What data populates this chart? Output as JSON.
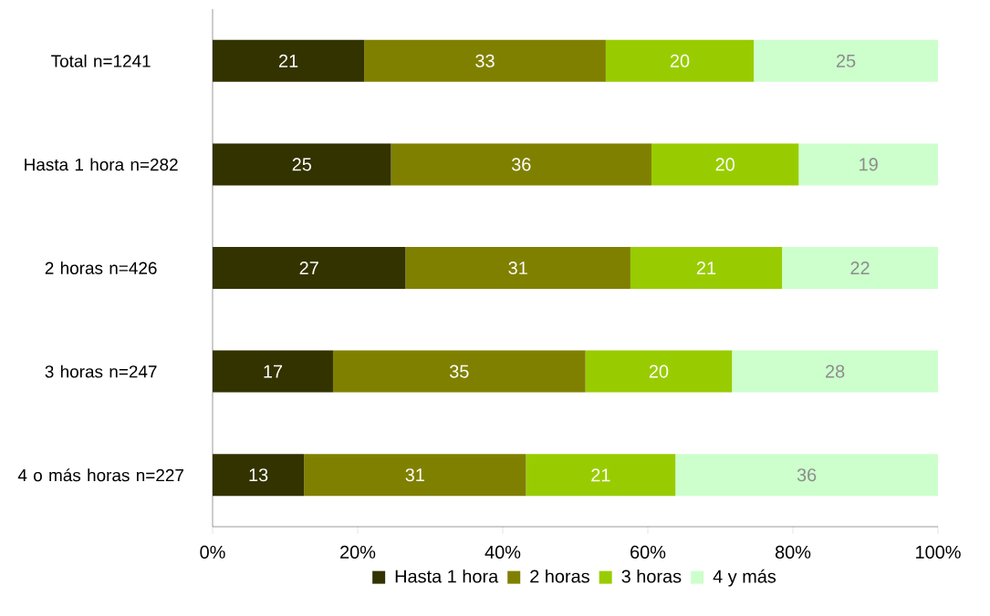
{
  "chart_data": {
    "type": "bar",
    "orientation": "horizontal",
    "stacked": true,
    "categories": [
      "Total n=1241",
      "Hasta 1 hora n=282",
      "2 horas n=426",
      "3 horas n=247",
      "4 o más horas n=227"
    ],
    "series": [
      {
        "name": "Hasta 1 hora",
        "color": "#333300",
        "values": [
          20.9,
          24.6,
          26.6,
          16.6,
          12.6
        ],
        "value_labels": [
          "21",
          "25",
          "27",
          "17",
          "13"
        ]
      },
      {
        "name": "2 horas",
        "color": "#808000",
        "values": [
          33.3,
          35.9,
          31.0,
          34.8,
          30.6
        ],
        "value_labels": [
          "33",
          "36",
          "31",
          "35",
          "31"
        ]
      },
      {
        "name": "3 horas",
        "color": "#99cc00",
        "values": [
          20.4,
          20.3,
          20.9,
          20.2,
          20.6
        ],
        "value_labels": [
          "20",
          "20",
          "21",
          "20",
          "21"
        ]
      },
      {
        "name": "4 y más",
        "color": "#ccffcc",
        "values": [
          25.4,
          19.2,
          21.5,
          28.4,
          36.2
        ],
        "value_labels": [
          "25",
          "19",
          "22",
          "28",
          "36"
        ]
      }
    ],
    "xlim": [
      0,
      100
    ],
    "xticks": [
      {
        "value": 0,
        "label": "0%"
      },
      {
        "value": 20,
        "label": "20%"
      },
      {
        "value": 40,
        "label": "40%"
      },
      {
        "value": 60,
        "label": "60%"
      },
      {
        "value": 80,
        "label": "80%"
      },
      {
        "value": 100,
        "label": "100%"
      }
    ],
    "legend": "bottom"
  }
}
